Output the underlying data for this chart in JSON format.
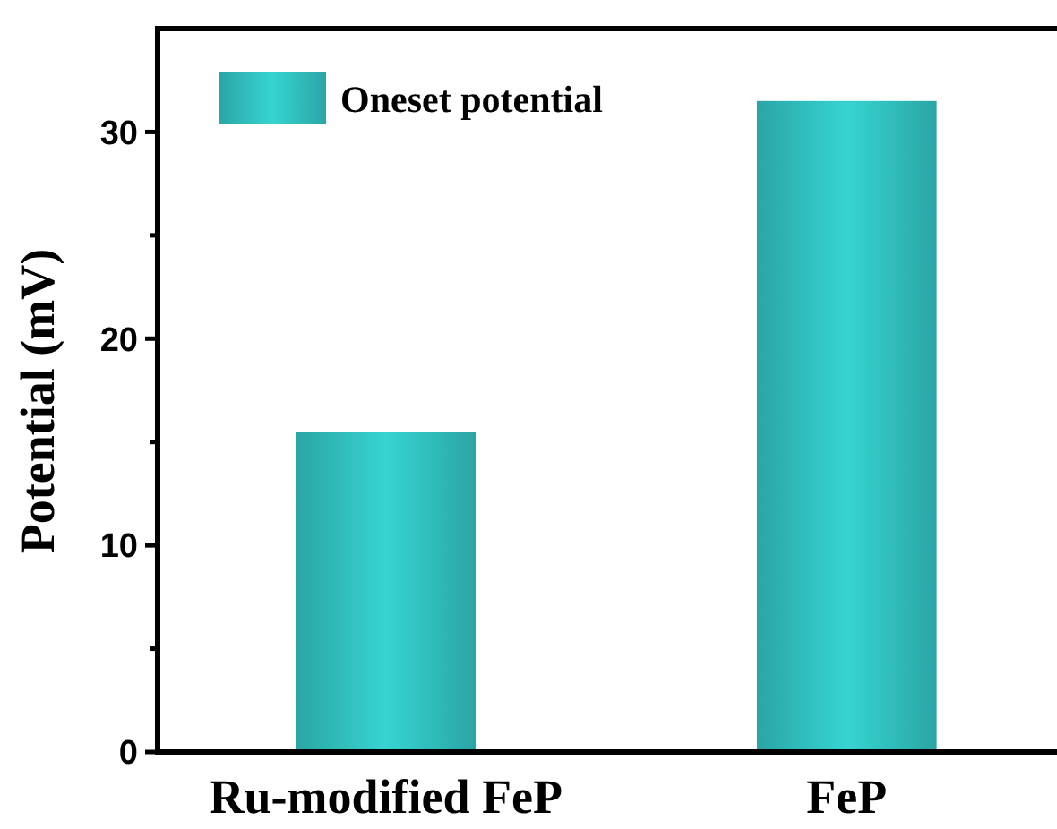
{
  "chart_data": {
    "type": "bar",
    "ylabel": "Potential (mV)",
    "categories": [
      "Ru-modified FeP",
      "FeP"
    ],
    "series": [
      {
        "name": "Oneset potential",
        "color": "#36d4d2",
        "values": [
          15.5,
          31.5
        ]
      }
    ],
    "ylim": [
      0,
      35
    ],
    "yticks": [
      0,
      {
        "value": 5,
        "label": null
      },
      10,
      {
        "value": 15,
        "label": null
      },
      20,
      {
        "value": 25,
        "label": null
      },
      30
    ],
    "legend": "top left",
    "grid": false
  }
}
